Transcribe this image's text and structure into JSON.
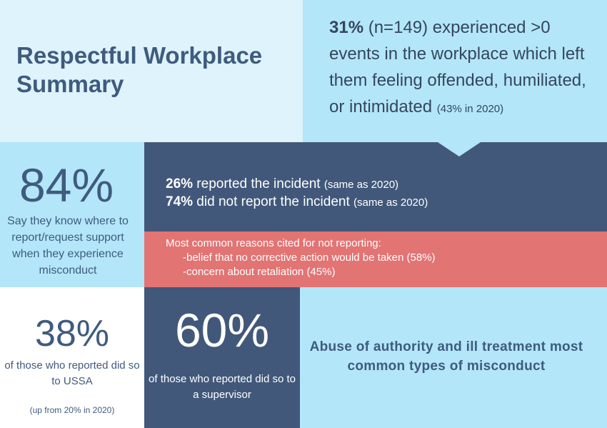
{
  "title": "Respectful Workplace Summary",
  "offended": {
    "pct": "31%",
    "text": " (n=149) experienced >0 events in the workplace which left them feeling offended, humiliated, or intimidated ",
    "note": "(43% in 2020)"
  },
  "know": {
    "pct": "84%",
    "label": "Say they know where to report/request support when they experience misconduct"
  },
  "reported": {
    "line1_pct": "26%",
    "line1_text": " reported the incident ",
    "line1_note": "(same as 2020)",
    "line2_pct": "74%",
    "line2_text": " did not report the incident ",
    "line2_note": "(same as 2020)"
  },
  "reasons": {
    "heading": "Most common reasons cited for not reporting:",
    "items": [
      "-belief that no corrective action would be taken (58%)",
      "-concern about retaliation (45%)"
    ]
  },
  "ussa": {
    "pct": "38%",
    "label": "of those who reported did so to USSA",
    "note": "(up from 20% in 2020)"
  },
  "supervisor": {
    "pct": "60%",
    "label": "of those who reported did so to a supervisor"
  },
  "abuse": {
    "text": "Abuse of authority and ill treatment most common types of misconduct"
  },
  "colors": {
    "light_blue": "#b3e6f8",
    "pale_blue": "#def3fc",
    "navy": "#42587a",
    "red": "#e27474",
    "title_text": "#3f5b7e"
  }
}
